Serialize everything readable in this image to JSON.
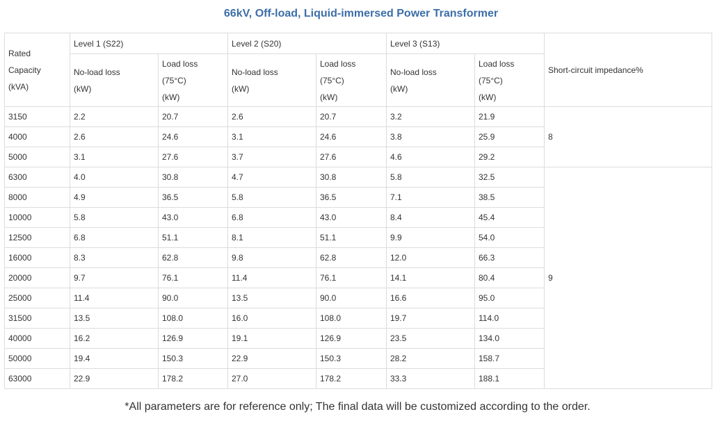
{
  "title": "66kV, Off-load, Liquid-immersed Power Transformer",
  "table": {
    "header": {
      "capacity": [
        "Rated",
        "Capacity",
        "(kVA)"
      ],
      "levels": [
        {
          "name": "Level 1 (S22)",
          "no_load": [
            "No-load loss",
            "(kW)"
          ],
          "load": [
            "Load loss",
            "(75°C)",
            "(kW)"
          ]
        },
        {
          "name": "Level 2 (S20)",
          "no_load": [
            "No-load loss",
            "(kW)"
          ],
          "load": [
            "Load loss",
            "(75°C)",
            "(kW)"
          ]
        },
        {
          "name": "Level 3 (S13)",
          "no_load": [
            "No-load loss",
            "(kW)"
          ],
          "load": [
            "Load loss",
            "(75°C)",
            "(kW)"
          ]
        }
      ],
      "impedance": "Short-circuit impedance%"
    },
    "groups": [
      {
        "impedance": "8",
        "rows": [
          [
            "3150",
            "2.2",
            "20.7",
            "2.6",
            "20.7",
            "3.2",
            "21.9"
          ],
          [
            "4000",
            "2.6",
            "24.6",
            "3.1",
            "24.6",
            "3.8",
            "25.9"
          ],
          [
            "5000",
            "3.1",
            "27.6",
            "3.7",
            "27.6",
            "4.6",
            "29.2"
          ]
        ]
      },
      {
        "impedance": "9",
        "rows": [
          [
            "6300",
            "4.0",
            "30.8",
            "4.7",
            "30.8",
            "5.8",
            "32.5"
          ],
          [
            "8000",
            "4.9",
            "36.5",
            "5.8",
            "36.5",
            "7.1",
            "38.5"
          ],
          [
            "10000",
            "5.8",
            "43.0",
            "6.8",
            "43.0",
            "8.4",
            "45.4"
          ],
          [
            "12500",
            "6.8",
            "51.1",
            "8.1",
            "51.1",
            "9.9",
            "54.0"
          ],
          [
            "16000",
            "8.3",
            "62.8",
            "9.8",
            "62.8",
            "12.0",
            "66.3"
          ],
          [
            "20000",
            "9.7",
            "76.1",
            "11.4",
            "76.1",
            "14.1",
            "80.4"
          ],
          [
            "25000",
            "11.4",
            "90.0",
            "13.5",
            "90.0",
            "16.6",
            "95.0"
          ],
          [
            "31500",
            "13.5",
            "108.0",
            "16.0",
            "108.0",
            "19.7",
            "114.0"
          ],
          [
            "40000",
            "16.2",
            "126.9",
            "19.1",
            "126.9",
            "23.5",
            "134.0"
          ],
          [
            "50000",
            "19.4",
            "150.3",
            "22.9",
            "150.3",
            "28.2",
            "158.7"
          ],
          [
            "63000",
            "22.9",
            "178.2",
            "27.0",
            "178.2",
            "33.3",
            "188.1"
          ]
        ]
      }
    ]
  },
  "footnote": "*All parameters are for reference only; The final data will be customized according to the order."
}
